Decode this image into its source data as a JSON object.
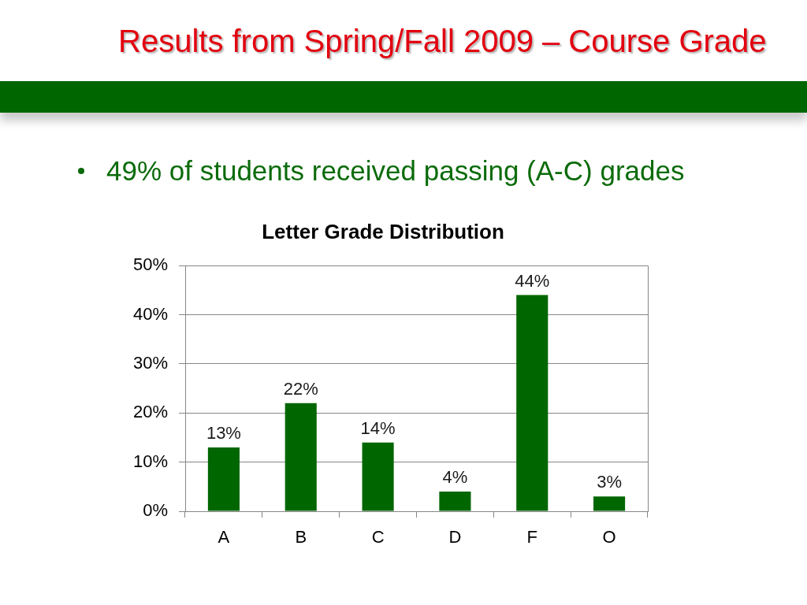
{
  "chart_data": {
    "type": "bar",
    "title": "Letter Grade Distribution",
    "annotations": [
      "Results from Spring/Fall 2009 – Course Grade",
      "49% of students received passing (A-C) grades"
    ],
    "categories": [
      "A",
      "B",
      "C",
      "D",
      "F",
      "O"
    ],
    "values": [
      13,
      22,
      14,
      4,
      44,
      3
    ],
    "color": "#006600",
    "value_labels": [
      "13%",
      "22%",
      "14%",
      "4%",
      "44%",
      "3%"
    ],
    "ylim": [
      0,
      50
    ],
    "yticks": [
      {
        "value": 0,
        "label": "0%"
      },
      {
        "value": 10,
        "label": "10%"
      },
      {
        "value": 20,
        "label": "20%"
      },
      {
        "value": 30,
        "label": "30%"
      },
      {
        "value": 40,
        "label": "40%"
      },
      {
        "value": 50,
        "label": "50%"
      }
    ],
    "grid": "y"
  }
}
